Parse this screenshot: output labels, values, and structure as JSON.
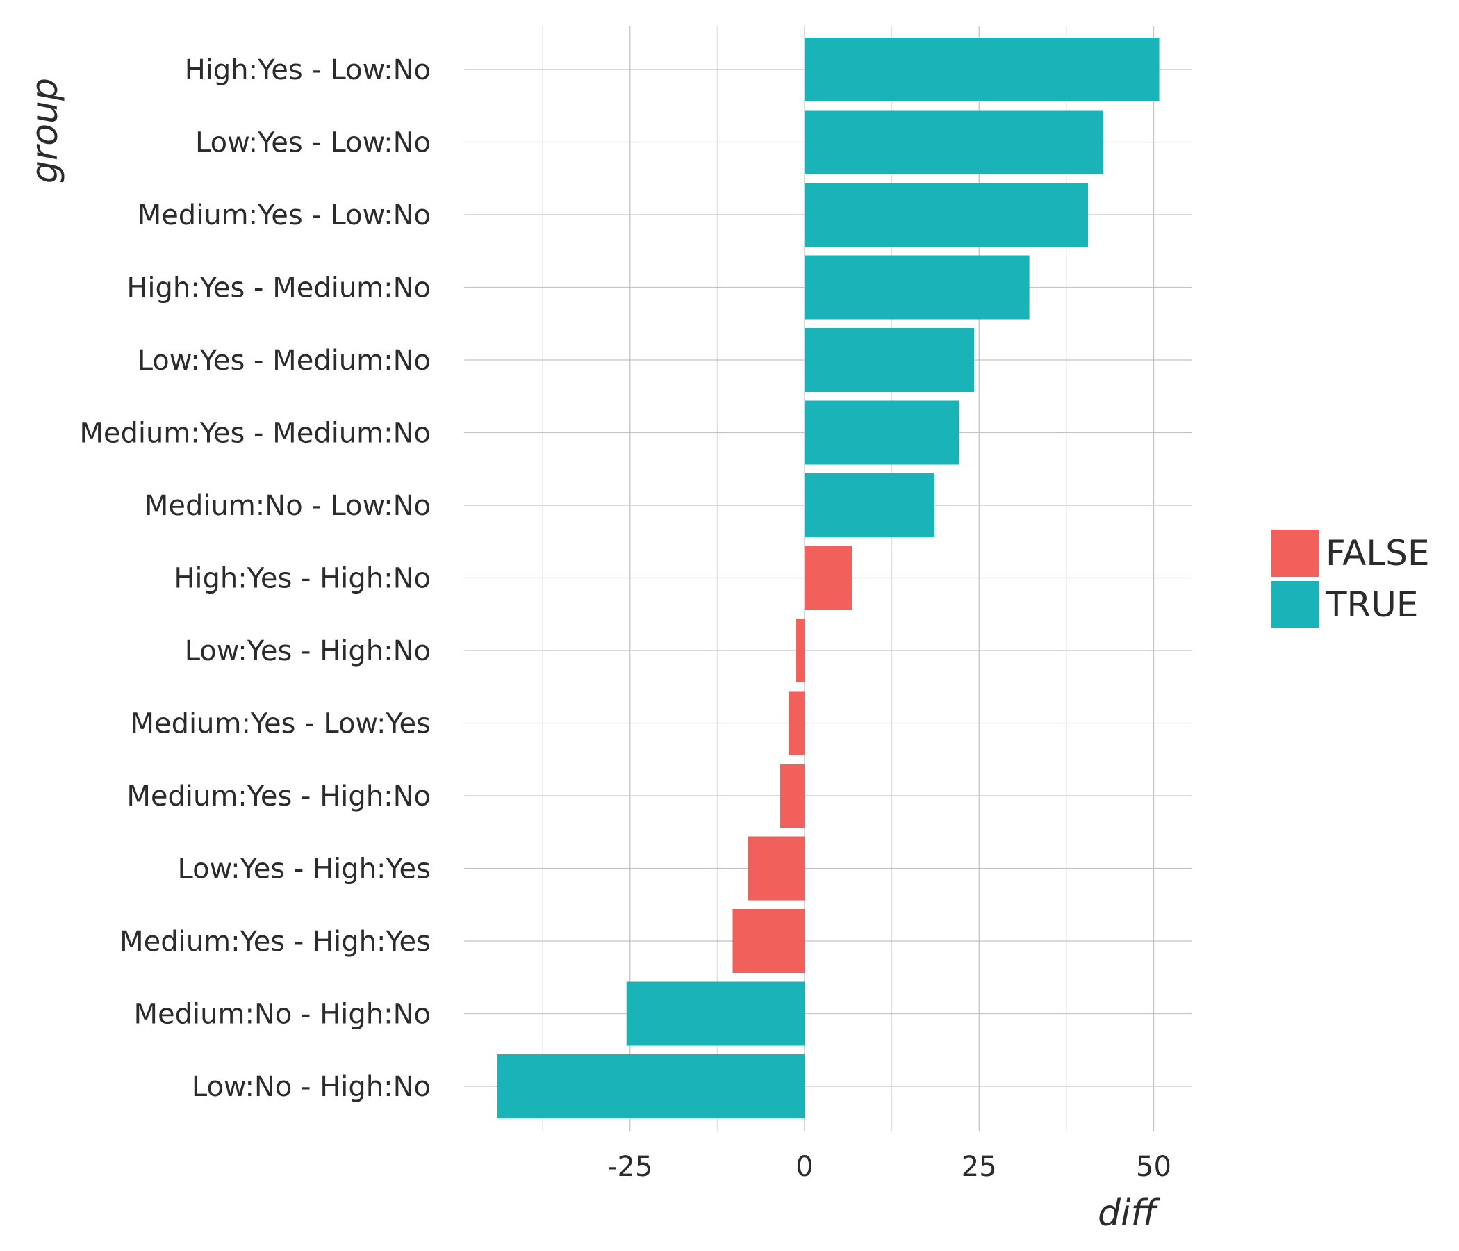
{
  "chart_data": {
    "type": "bar",
    "orientation": "horizontal",
    "title": "",
    "xlabel": "diff",
    "ylabel": "group",
    "xlim": [
      -44.5,
      55
    ],
    "x_ticks": [
      -25,
      0,
      25,
      50
    ],
    "x_tick_labels": [
      "-25",
      "0",
      "25",
      "50"
    ],
    "grid": true,
    "legend": {
      "placement": "right",
      "entries": [
        {
          "label": "FALSE",
          "color": "#F8766D"
        },
        {
          "label": "TRUE",
          "color": "#00BFC4"
        }
      ]
    },
    "colors": {
      "FALSE": "#F2605C",
      "TRUE": "#1AB3B7"
    },
    "categories": [
      "High:Yes - Low:No",
      "Low:Yes - Low:No",
      "Medium:Yes - Low:No",
      "High:Yes - Medium:No",
      "Low:Yes - Medium:No",
      "Medium:Yes - Medium:No",
      "Medium:No - Low:No",
      "High:Yes - High:No",
      "Low:Yes - High:No",
      "Medium:Yes - Low:Yes",
      "Medium:Yes - High:No",
      "Low:Yes - High:Yes",
      "Medium:Yes - High:Yes",
      "Medium:No - High:No",
      "Low:No - High:No"
    ],
    "values": [
      50.8,
      42.8,
      40.6,
      32.2,
      24.3,
      22.1,
      18.6,
      6.8,
      -1.2,
      -2.3,
      -3.5,
      -8.1,
      -10.3,
      -25.5,
      -44.0
    ],
    "significant": [
      true,
      true,
      true,
      true,
      true,
      true,
      true,
      false,
      false,
      false,
      false,
      false,
      false,
      true,
      true
    ]
  }
}
